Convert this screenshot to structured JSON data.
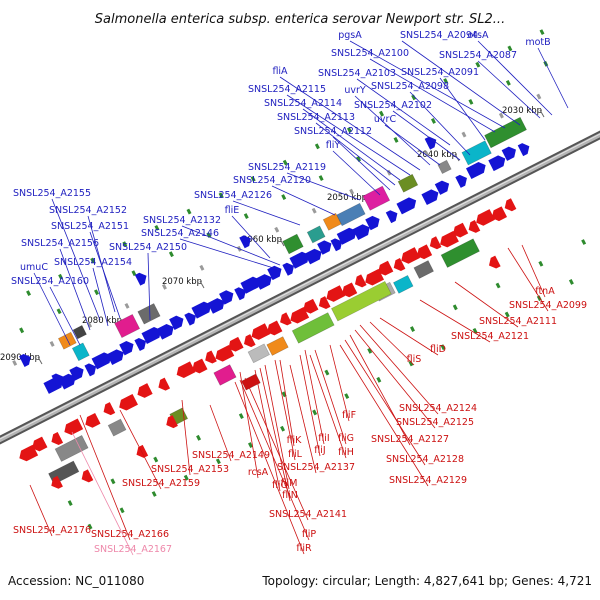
{
  "title": "Salmonella enterica subsp. enterica serovar Newport str. SL2...",
  "footer": {
    "accession": "Accession: NC_011080",
    "summary": "Topology: circular; Length: 4,827,641 bp; Genes: 4,721"
  },
  "colors": {
    "forward_label": "#1f1fbf",
    "reverse_label": "#cc1111",
    "pseudo_label": "#ee88aa",
    "backbone": "#888888"
  },
  "ruler": [
    "2030 kbp",
    "2040 kbp",
    "2050 kbp",
    "2060 kbp",
    "2070 kbp",
    "2080 kbp",
    "2090 kbp"
  ],
  "forward_genes": [
    "motB",
    "otsA",
    "SNSL254_A2087",
    "SNSL254_A2094",
    "pgsA",
    "SNSL254_A2100",
    "SNSL254_A2091",
    "SNSL254_A2103",
    "fliA",
    "SNSL254_A2098",
    "uvrY",
    "SNSL254_A2115",
    "SNSL254_A2102",
    "SNSL254_A2114",
    "SNSL254_A2113",
    "uvrC",
    "SNSL254_A2112",
    "fliY",
    "SNSL254_A2119",
    "SNSL254_A2120",
    "SNSL254_A2126",
    "fliE",
    "SNSL254_A2155",
    "SNSL254_A2152",
    "SNSL254_A2132",
    "SNSL254_A2151",
    "SNSL254_A2146",
    "SNSL254_A2156",
    "SNSL254_A2150",
    "SNSL254_A2154",
    "umuC",
    "SNSL254_A2160"
  ],
  "reverse_genes": [
    "ftnA",
    "SNSL254_A2099",
    "SNSL254_A2111",
    "SNSL254_A2121",
    "fliD",
    "fliS",
    "fliF",
    "SNSL254_A2124",
    "SNSL254_A2125",
    "SNSL254_A2127",
    "SNSL254_A2128",
    "SNSL254_A2129",
    "fliI",
    "fliG",
    "fliJ",
    "fliH",
    "fliK",
    "fliL",
    "SNSL254_A2137",
    "fliM",
    "fliN",
    "fliO",
    "rcsA",
    "SNSL254_A2149",
    "SNSL254_A2141",
    "fliP",
    "fliR",
    "SNSL254_A2153",
    "SNSL254_A2159",
    "SNSL254_A2166",
    "SNSL254_A2176"
  ],
  "pseudo_genes": [
    "SNSL254_A2167"
  ]
}
